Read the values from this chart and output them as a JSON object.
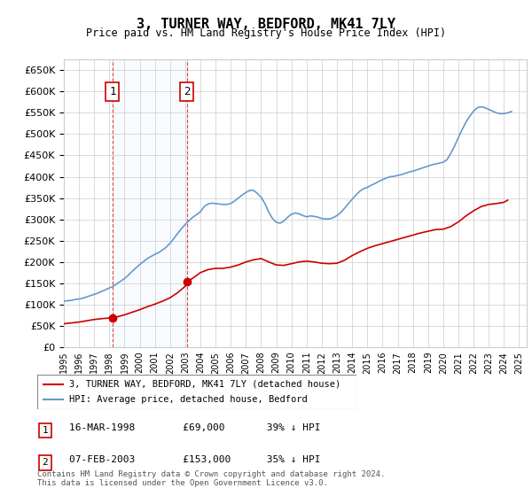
{
  "title": "3, TURNER WAY, BEDFORD, MK41 7LY",
  "subtitle": "Price paid vs. HM Land Registry's House Price Index (HPI)",
  "xlabel": "",
  "ylabel": "",
  "ylim": [
    0,
    675000
  ],
  "yticks": [
    0,
    50000,
    100000,
    150000,
    200000,
    250000,
    300000,
    350000,
    400000,
    450000,
    500000,
    550000,
    600000,
    650000
  ],
  "xlim_start": 1995.0,
  "xlim_end": 2025.5,
  "legend_line1": "3, TURNER WAY, BEDFORD, MK41 7LY (detached house)",
  "legend_line2": "HPI: Average price, detached house, Bedford",
  "line1_color": "#cc0000",
  "line2_color": "#6699cc",
  "purchase1_date": 1998.21,
  "purchase1_price": 69000,
  "purchase2_date": 2003.1,
  "purchase2_price": 153000,
  "annotation1_label": "1",
  "annotation2_label": "2",
  "annotation1_info": "16-MAR-1998    £69,000       39% ↓ HPI",
  "annotation2_info": "07-FEB-2003    £153,000     35% ↓ HPI",
  "footer": "Contains HM Land Registry data © Crown copyright and database right 2024.\nThis data is licensed under the Open Government Licence v3.0.",
  "grid_color": "#cccccc",
  "bg_color": "#ffffff",
  "plot_bg_color": "#ffffff",
  "hpi_years": [
    1995.0,
    1995.25,
    1995.5,
    1995.75,
    1996.0,
    1996.25,
    1996.5,
    1996.75,
    1997.0,
    1997.25,
    1997.5,
    1997.75,
    1998.0,
    1998.25,
    1998.5,
    1998.75,
    1999.0,
    1999.25,
    1999.5,
    1999.75,
    2000.0,
    2000.25,
    2000.5,
    2000.75,
    2001.0,
    2001.25,
    2001.5,
    2001.75,
    2002.0,
    2002.25,
    2002.5,
    2002.75,
    2003.0,
    2003.25,
    2003.5,
    2003.75,
    2004.0,
    2004.25,
    2004.5,
    2004.75,
    2005.0,
    2005.25,
    2005.5,
    2005.75,
    2006.0,
    2006.25,
    2006.5,
    2006.75,
    2007.0,
    2007.25,
    2007.5,
    2007.75,
    2008.0,
    2008.25,
    2008.5,
    2008.75,
    2009.0,
    2009.25,
    2009.5,
    2009.75,
    2010.0,
    2010.25,
    2010.5,
    2010.75,
    2011.0,
    2011.25,
    2011.5,
    2011.75,
    2012.0,
    2012.25,
    2012.5,
    2012.75,
    2013.0,
    2013.25,
    2013.5,
    2013.75,
    2014.0,
    2014.25,
    2014.5,
    2014.75,
    2015.0,
    2015.25,
    2015.5,
    2015.75,
    2016.0,
    2016.25,
    2016.5,
    2016.75,
    2017.0,
    2017.25,
    2017.5,
    2017.75,
    2018.0,
    2018.25,
    2018.5,
    2018.75,
    2019.0,
    2019.25,
    2019.5,
    2019.75,
    2020.0,
    2020.25,
    2020.5,
    2020.75,
    2021.0,
    2021.25,
    2021.5,
    2021.75,
    2022.0,
    2022.25,
    2022.5,
    2022.75,
    2023.0,
    2023.25,
    2023.5,
    2023.75,
    2024.0,
    2024.25,
    2024.5
  ],
  "hpi_values": [
    108000,
    109000,
    110000,
    112000,
    113000,
    115000,
    118000,
    121000,
    124000,
    127000,
    131000,
    135000,
    139000,
    143000,
    149000,
    155000,
    161000,
    169000,
    178000,
    186000,
    194000,
    201000,
    208000,
    213000,
    218000,
    222000,
    228000,
    235000,
    244000,
    255000,
    267000,
    278000,
    288000,
    297000,
    305000,
    311000,
    318000,
    330000,
    336000,
    338000,
    337000,
    336000,
    335000,
    335000,
    337000,
    343000,
    350000,
    357000,
    363000,
    368000,
    368000,
    361000,
    352000,
    337000,
    317000,
    302000,
    293000,
    291000,
    296000,
    305000,
    312000,
    315000,
    313000,
    309000,
    306000,
    308000,
    307000,
    305000,
    302000,
    301000,
    301000,
    304000,
    309000,
    316000,
    326000,
    337000,
    347000,
    357000,
    366000,
    372000,
    375000,
    380000,
    384000,
    389000,
    393000,
    397000,
    400000,
    401000,
    403000,
    405000,
    408000,
    411000,
    413000,
    416000,
    419000,
    422000,
    425000,
    428000,
    430000,
    432000,
    434000,
    440000,
    455000,
    472000,
    492000,
    511000,
    528000,
    542000,
    554000,
    562000,
    564000,
    562000,
    558000,
    554000,
    550000,
    548000,
    548000,
    550000,
    553000
  ],
  "price_years": [
    1995.0,
    1995.5,
    1996.0,
    1996.5,
    1997.0,
    1997.5,
    1998.0,
    1998.21,
    1998.5,
    1999.0,
    1999.5,
    2000.0,
    2000.5,
    2001.0,
    2001.5,
    2002.0,
    2002.5,
    2003.0,
    2003.1,
    2003.5,
    2004.0,
    2004.5,
    2005.0,
    2005.5,
    2006.0,
    2006.5,
    2007.0,
    2007.5,
    2008.0,
    2008.5,
    2009.0,
    2009.5,
    2010.0,
    2010.5,
    2011.0,
    2011.5,
    2012.0,
    2012.5,
    2013.0,
    2013.5,
    2014.0,
    2014.5,
    2015.0,
    2015.5,
    2016.0,
    2016.5,
    2017.0,
    2017.5,
    2018.0,
    2018.5,
    2019.0,
    2019.5,
    2020.0,
    2020.5,
    2021.0,
    2021.5,
    2022.0,
    2022.5,
    2023.0,
    2023.5,
    2024.0,
    2024.25
  ],
  "price_values": [
    55000,
    57000,
    59000,
    62000,
    65000,
    67000,
    68500,
    69000,
    71000,
    76000,
    82000,
    88000,
    95000,
    101000,
    108000,
    116000,
    128000,
    143000,
    153000,
    162000,
    175000,
    182000,
    185000,
    185000,
    188000,
    193000,
    200000,
    205000,
    208000,
    200000,
    193000,
    192000,
    196000,
    200000,
    202000,
    200000,
    197000,
    196000,
    197000,
    204000,
    215000,
    224000,
    232000,
    238000,
    243000,
    248000,
    253000,
    258000,
    263000,
    268000,
    272000,
    276000,
    277000,
    283000,
    294000,
    308000,
    320000,
    330000,
    335000,
    337000,
    340000,
    345000
  ]
}
